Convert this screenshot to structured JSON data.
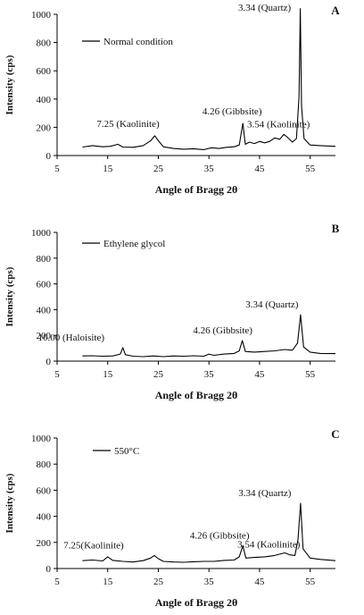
{
  "chart_data": [
    {
      "type": "line",
      "panel": "A",
      "legend": "Normal condition",
      "xlabel": "Angle of Bragg 2θ",
      "ylabel": "Intensity (cps)",
      "xlim": [
        5,
        60
      ],
      "ylim": [
        0,
        1000
      ],
      "xticks": [
        5,
        15,
        25,
        35,
        45,
        55
      ],
      "yticks": [
        0,
        200,
        400,
        600,
        800,
        1000
      ],
      "series": [
        {
          "points": [
            [
              10,
              60
            ],
            [
              12,
              70
            ],
            [
              14,
              62
            ],
            [
              15.5,
              65
            ],
            [
              17,
              80
            ],
            [
              18,
              60
            ],
            [
              20,
              58
            ],
            [
              22,
              70
            ],
            [
              23.5,
              105
            ],
            [
              24.3,
              140
            ],
            [
              25,
              105
            ],
            [
              26,
              62
            ],
            [
              28,
              50
            ],
            [
              30,
              45
            ],
            [
              32,
              48
            ],
            [
              34,
              42
            ],
            [
              35.5,
              55
            ],
            [
              37,
              50
            ],
            [
              38.5,
              58
            ],
            [
              40,
              62
            ],
            [
              41,
              75
            ],
            [
              41.7,
              228
            ],
            [
              42.2,
              80
            ],
            [
              43,
              95
            ],
            [
              44,
              85
            ],
            [
              45,
              100
            ],
            [
              46,
              90
            ],
            [
              47,
              100
            ],
            [
              48,
              125
            ],
            [
              49,
              115
            ],
            [
              49.8,
              150
            ],
            [
              50.5,
              130
            ],
            [
              51.5,
              95
            ],
            [
              52.3,
              120
            ],
            [
              52.8,
              420
            ],
            [
              53.05,
              1040
            ],
            [
              53.3,
              350
            ],
            [
              53.8,
              120
            ],
            [
              55,
              75
            ],
            [
              57,
              70
            ],
            [
              60,
              65
            ]
          ]
        }
      ],
      "annotations": [
        {
          "text": "7.25 (Kaolinite)",
          "x": 24.3,
          "y": 140
        },
        {
          "text": "4.26 (Gibbsite)",
          "x": 41.7,
          "y": 228
        },
        {
          "text": "3.54 (Kaolinite)",
          "x": 49.8,
          "y": 150
        },
        {
          "text": "3.34 (Quartz)",
          "x": 53.05,
          "y": 1040
        }
      ]
    },
    {
      "type": "line",
      "panel": "B",
      "legend": "Ethylene glycol",
      "xlabel": "Angle of Bragg 2θ",
      "ylabel": "Intensity (cps)",
      "xlim": [
        5,
        60
      ],
      "ylim": [
        0,
        1000
      ],
      "xticks": [
        5,
        15,
        25,
        35,
        45,
        55
      ],
      "yticks": [
        0,
        200,
        400,
        600,
        800,
        1000
      ],
      "series": [
        {
          "points": [
            [
              10,
              40
            ],
            [
              12,
              42
            ],
            [
              14,
              38
            ],
            [
              16,
              40
            ],
            [
              17.5,
              55
            ],
            [
              18,
              105
            ],
            [
              18.5,
              50
            ],
            [
              20,
              38
            ],
            [
              22,
              35
            ],
            [
              24,
              40
            ],
            [
              26,
              35
            ],
            [
              28,
              40
            ],
            [
              30,
              38
            ],
            [
              32,
              42
            ],
            [
              34,
              38
            ],
            [
              35,
              55
            ],
            [
              36,
              45
            ],
            [
              38,
              55
            ],
            [
              40,
              60
            ],
            [
              41,
              80
            ],
            [
              41.6,
              160
            ],
            [
              42.2,
              75
            ],
            [
              44,
              70
            ],
            [
              46,
              75
            ],
            [
              48,
              80
            ],
            [
              50,
              90
            ],
            [
              51.5,
              85
            ],
            [
              52.5,
              140
            ],
            [
              53.1,
              360
            ],
            [
              53.7,
              110
            ],
            [
              55,
              70
            ],
            [
              57,
              60
            ],
            [
              60,
              58
            ]
          ]
        }
      ],
      "annotations": [
        {
          "text": "10.00 (Haloisite)",
          "x": 18,
          "y": 105
        },
        {
          "text": "4.26 (Gibbsite)",
          "x": 41.6,
          "y": 160
        },
        {
          "text": "3.34 (Quartz)",
          "x": 53.1,
          "y": 360
        }
      ]
    },
    {
      "type": "line",
      "panel": "C",
      "legend": "550°C",
      "xlabel": "Angle of Bragg 2θ",
      "ylabel": "Intensity (cps)",
      "xlim": [
        5,
        60
      ],
      "ylim": [
        0,
        1000
      ],
      "xticks": [
        5,
        15,
        25,
        35,
        45,
        55
      ],
      "yticks": [
        0,
        200,
        400,
        600,
        800,
        1000
      ],
      "series": [
        {
          "points": [
            [
              10,
              60
            ],
            [
              12,
              65
            ],
            [
              14,
              58
            ],
            [
              15,
              90
            ],
            [
              16,
              62
            ],
            [
              18,
              55
            ],
            [
              20,
              50
            ],
            [
              22,
              60
            ],
            [
              23.5,
              80
            ],
            [
              24.2,
              100
            ],
            [
              25,
              75
            ],
            [
              26,
              55
            ],
            [
              28,
              50
            ],
            [
              30,
              48
            ],
            [
              32,
              52
            ],
            [
              34,
              55
            ],
            [
              36,
              55
            ],
            [
              38,
              62
            ],
            [
              40,
              65
            ],
            [
              41,
              90
            ],
            [
              41.7,
              175
            ],
            [
              42.3,
              80
            ],
            [
              44,
              85
            ],
            [
              46,
              90
            ],
            [
              48,
              100
            ],
            [
              49,
              110
            ],
            [
              50,
              120
            ],
            [
              51,
              105
            ],
            [
              52,
              100
            ],
            [
              52.6,
              220
            ],
            [
              53.1,
              500
            ],
            [
              53.6,
              150
            ],
            [
              55,
              80
            ],
            [
              57,
              70
            ],
            [
              60,
              60
            ]
          ]
        }
      ],
      "annotations": [
        {
          "text": "7.25(Kaolinite)",
          "x": 24.2,
          "y": 100
        },
        {
          "text": "4.26 (Gibbsite)",
          "x": 41.7,
          "y": 175
        },
        {
          "text": "3.54 (Kaolinite)",
          "x": 50,
          "y": 120
        },
        {
          "text": "3.34 (Quartz)",
          "x": 53.1,
          "y": 500
        }
      ]
    }
  ]
}
